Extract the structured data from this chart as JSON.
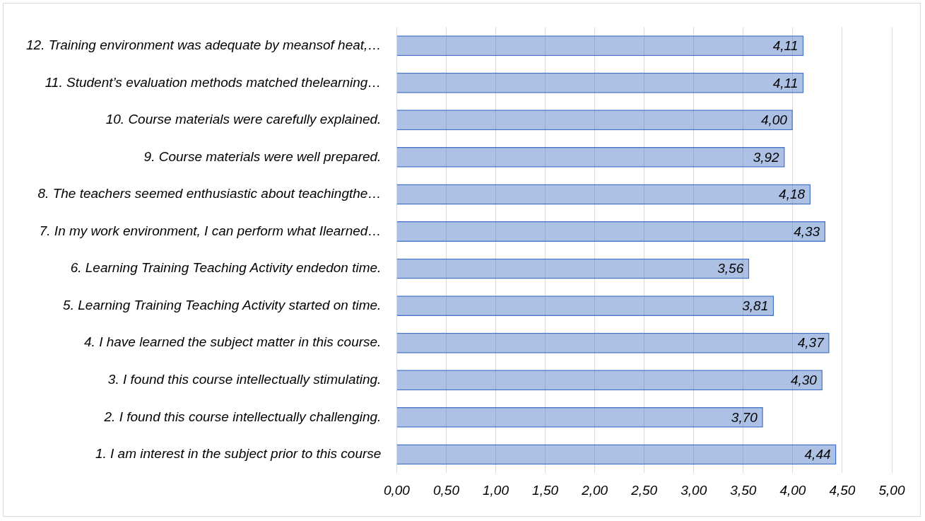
{
  "chart_data": {
    "type": "bar",
    "orientation": "horizontal",
    "categories": [
      "12. Training environment was adequate by meansof heat,…",
      "11. Student’s evaluation methods matched thelearning…",
      "10. Course materials were carefully explained.",
      "9. Course materials were well prepared.",
      "8. The teachers seemed enthusiastic about teachingthe…",
      "7. In my work environment, I can perform what Ilearned…",
      "6. Learning Training Teaching Activity endedon time.",
      "5. Learning Training Teaching Activity started on time.",
      "4. I have learned the subject matter in this course.",
      "3. I found this course intellectually stimulating.",
      "2. I found this course intellectually challenging.",
      "1. I am interest in the subject prior to this course"
    ],
    "values": [
      4.11,
      4.11,
      4.0,
      3.92,
      4.18,
      4.33,
      3.56,
      3.81,
      4.37,
      4.3,
      3.7,
      4.44
    ],
    "value_labels": [
      "4,11",
      "4,11",
      "4,00",
      "3,92",
      "4,18",
      "4,33",
      "3,56",
      "3,81",
      "4,37",
      "4,30",
      "3,70",
      "4,44"
    ],
    "color": "#4472c4",
    "xlim": [
      0,
      5
    ],
    "xticks": [
      {
        "value": 0,
        "label": "0,00"
      },
      {
        "value": 0.5,
        "label": "0,50"
      },
      {
        "value": 1,
        "label": "1,00"
      },
      {
        "value": 1.5,
        "label": "1,50"
      },
      {
        "value": 2,
        "label": "2,00"
      },
      {
        "value": 2.5,
        "label": "2,50"
      },
      {
        "value": 3,
        "label": "3,00"
      },
      {
        "value": 3.5,
        "label": "3,50"
      },
      {
        "value": 4,
        "label": "4,00"
      },
      {
        "value": 4.5,
        "label": "4,50"
      },
      {
        "value": 5,
        "label": "5,00"
      }
    ],
    "grid": "x"
  }
}
